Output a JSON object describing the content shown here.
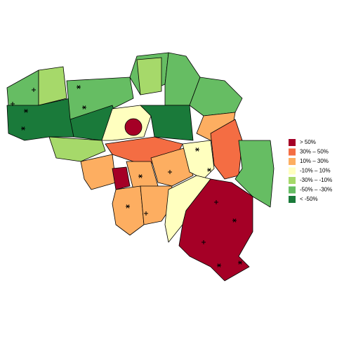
{
  "legend": {
    "items": [
      {
        "label": ">  50%",
        "color": "#a50026"
      },
      {
        "label": "30%  –   50%",
        "color": "#f46d43"
      },
      {
        "label": "10%  –   30%",
        "color": "#fdae61"
      },
      {
        "label": "-10%  –   10%",
        "color": "#ffffbf"
      },
      {
        "label": "-30%  – -10%",
        "color": "#a6d96a"
      },
      {
        "label": "-50%  – -30%",
        "color": "#66bd63"
      },
      {
        "label": "< -50%",
        "color": "#1a7a3a"
      }
    ]
  }
}
